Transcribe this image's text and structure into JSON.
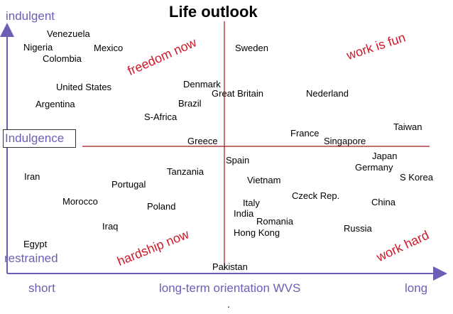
{
  "title": "Life outlook",
  "y_axis": {
    "top_label": "indulgent",
    "bottom_label": "restrained",
    "mid_label": "Indulgence"
  },
  "x_axis": {
    "left_label": "short",
    "center_label": "long-term orientation WVS",
    "right_label": "long"
  },
  "quadrants": {
    "top_left": "freedom now",
    "top_right": "work is fun",
    "bottom_left": "hardship now",
    "bottom_right": "work hard"
  },
  "countries": [
    "Venezuela",
    "Nigeria",
    "Mexico",
    "Colombia",
    "Sweden",
    "United States",
    "Denmark",
    "Great Britain",
    "Nederland",
    "Argentina",
    "Brazil",
    "S-Africa",
    "Taiwan",
    "France",
    "Singapore",
    "Greece",
    "Japan",
    "Germany",
    "S Korea",
    "Spain",
    "Tanzania",
    "Iran",
    "Portugal",
    "Vietnam",
    "Czeck Rep.",
    "Morocco",
    "Poland",
    "Italy",
    "China",
    "India",
    "Romania",
    "Iraq",
    "Russia",
    "Hong Kong",
    "Egypt",
    "Pakistan"
  ],
  "footer_mark": ".",
  "colors": {
    "axis": "#6b5fb5",
    "quadrant_text": "#d0182a",
    "center_lines": "#a01818"
  }
}
